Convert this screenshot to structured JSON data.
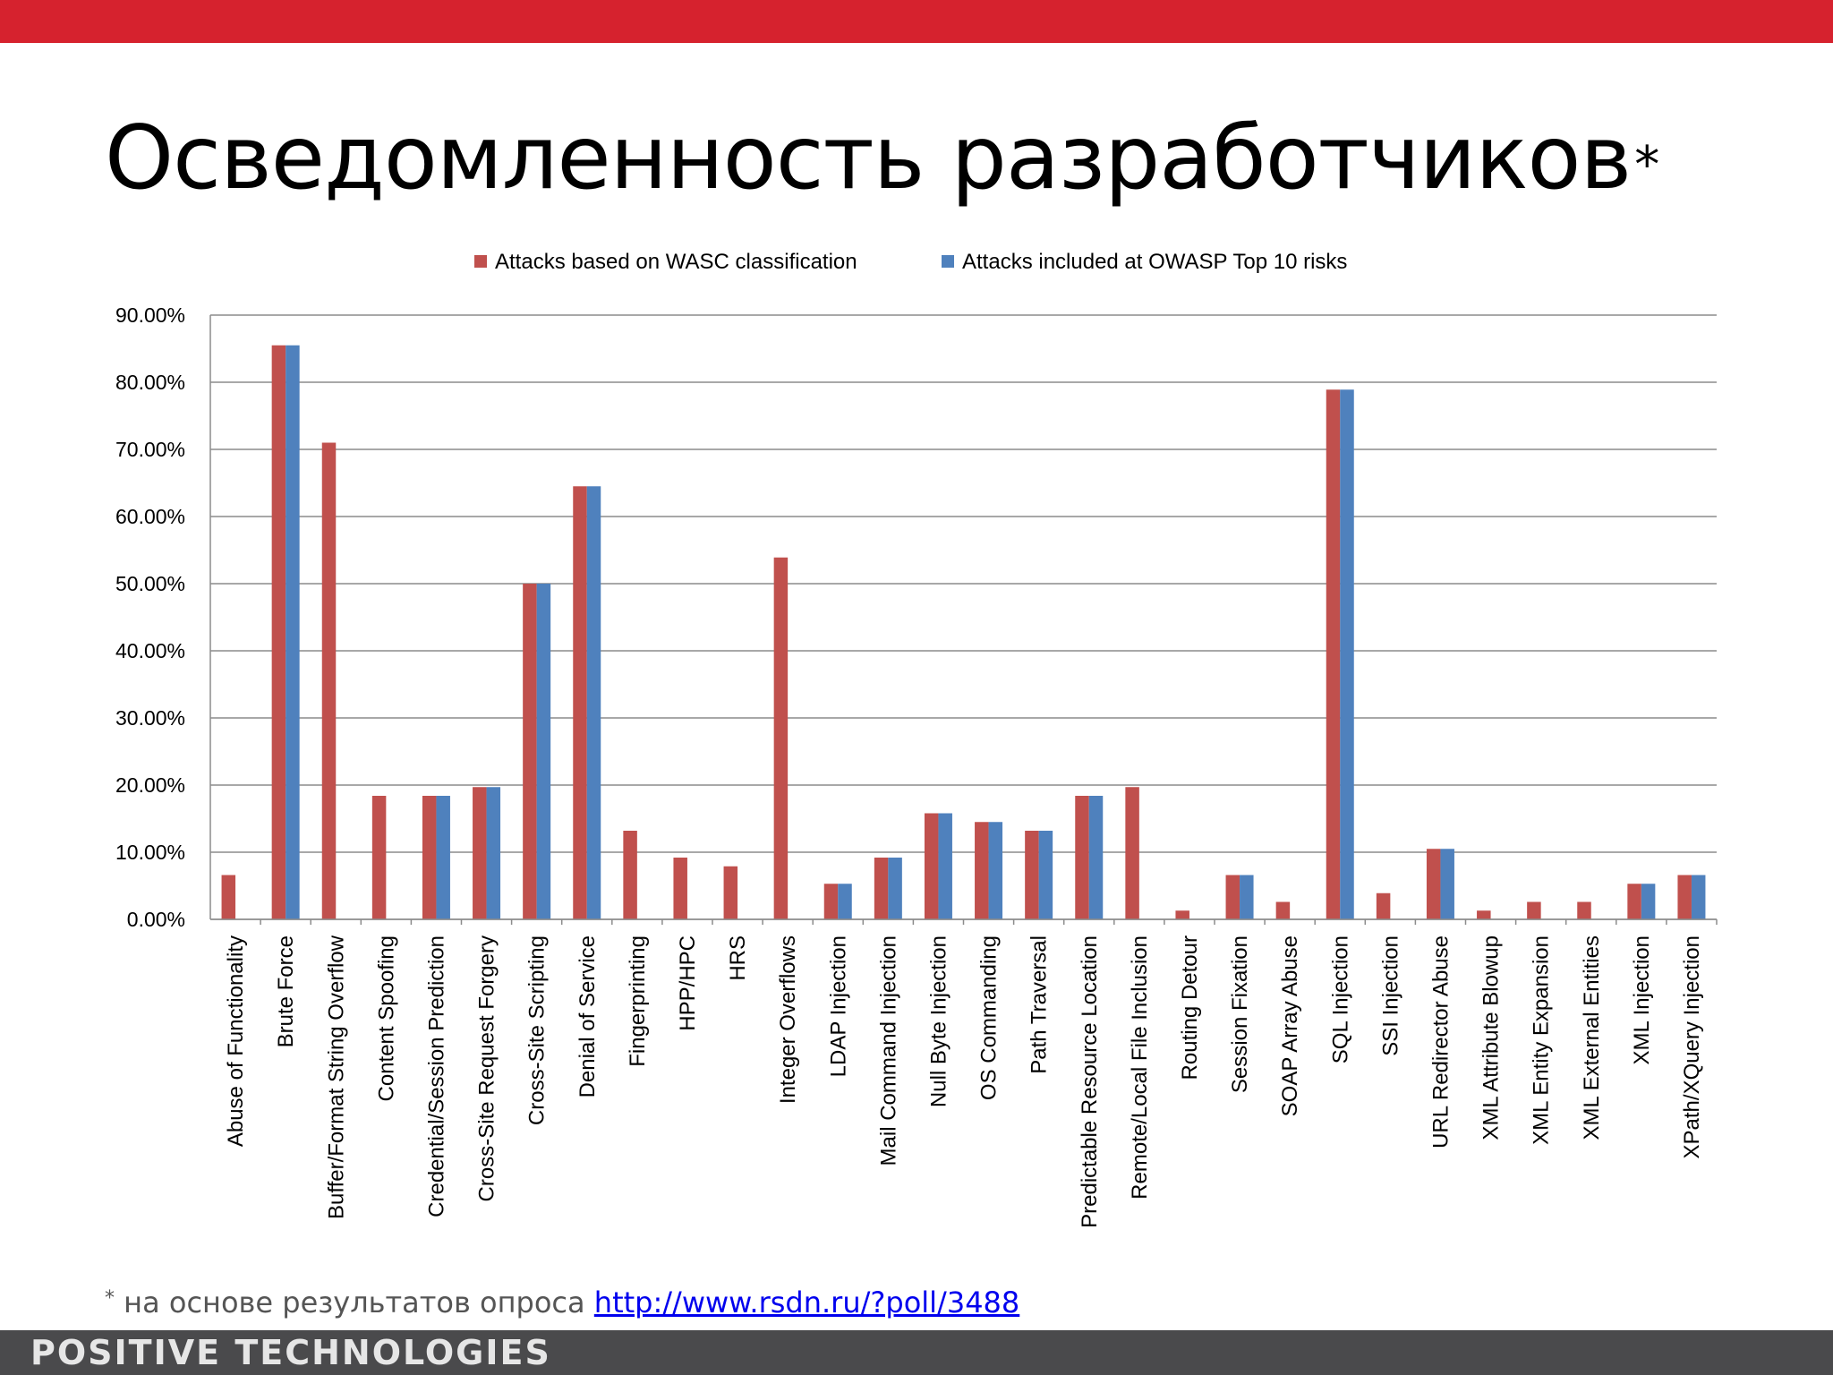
{
  "slide": {
    "title": "Осведомленность разработчиков",
    "title_mark": "*",
    "footnote_mark": "*",
    "footnote_text": " на основе результатов опроса ",
    "footnote_link": "http://www.rsdn.ru/?poll/3488",
    "logo": "POSITIVE TECHNOLOGIES",
    "colors": {
      "top_bar": "#d6222e",
      "bottom_bar": "#4a4a4c"
    }
  },
  "chart_data": {
    "type": "bar",
    "title": "",
    "xlabel": "",
    "ylabel": "",
    "ylim": [
      0,
      90
    ],
    "yticks": [
      "0.00%",
      "10.00%",
      "20.00%",
      "30.00%",
      "40.00%",
      "50.00%",
      "60.00%",
      "70.00%",
      "80.00%",
      "90.00%"
    ],
    "grid": true,
    "legend_position": "top",
    "categories": [
      "Abuse of Functionality",
      "Brute Force",
      "Buffer/Format String Overflow",
      "Content Spoofing",
      "Credential/Session Prediction",
      "Cross-Site Request Forgery",
      "Cross-Site Scripting",
      "Denial of Service",
      "Fingerprinting",
      "HPP/HPC",
      "HRS",
      "Integer Overflows",
      "LDAP Injection",
      "Mail Command Injection",
      "Null Byte Injection",
      "OS Commanding",
      "Path Traversal",
      "Predictable Resource Location",
      "Remote/Local File Inclusion",
      "Routing Detour",
      "Session Fixation",
      "SOAP Array Abuse",
      "SQL Injection",
      "SSI Injection",
      "URL Redirector Abuse",
      "XML Attribute Blowup",
      "XML Entity Expansion",
      "XML External Entities",
      "XML Injection",
      "XPath/XQuery Injection"
    ],
    "series": [
      {
        "name": "Attacks based on WASC classification",
        "color": "#c0504d",
        "values": [
          6.6,
          85.5,
          71,
          18.4,
          18.4,
          19.7,
          50,
          64.5,
          13.2,
          9.2,
          7.9,
          53.9,
          5.3,
          9.2,
          15.8,
          14.5,
          13.2,
          18.4,
          19.7,
          1.3,
          6.6,
          2.6,
          78.9,
          3.9,
          10.5,
          1.3,
          2.6,
          2.6,
          5.3,
          6.6
        ]
      },
      {
        "name": "Attacks included at OWASP Top 10 risks",
        "color": "#4f81bd",
        "values": [
          0,
          85.5,
          0,
          0,
          18.4,
          19.7,
          50,
          64.5,
          0,
          0,
          0,
          0,
          5.3,
          9.2,
          15.8,
          14.5,
          13.2,
          18.4,
          0,
          0,
          6.6,
          0,
          78.9,
          0,
          10.5,
          0,
          0,
          0,
          5.3,
          6.6
        ]
      }
    ]
  }
}
